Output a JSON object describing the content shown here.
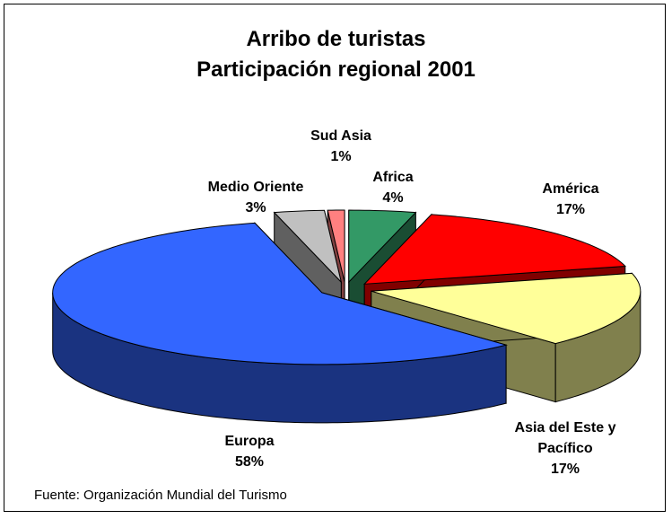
{
  "chart_data": {
    "type": "pie",
    "title": "Arribo de turistas",
    "subtitle": "Participación regional 2001",
    "categories": [
      "Africa",
      "América",
      "Asia del Este y Pacífico",
      "Europa",
      "Medio Oriente",
      "Sud Asia"
    ],
    "values": [
      4,
      17,
      17,
      58,
      3,
      1
    ],
    "value_labels": [
      "4%",
      "17%",
      "17%",
      "58%",
      "3%",
      "1%"
    ],
    "colors": [
      "#339966",
      "#ff0000",
      "#ffff99",
      "#3366ff",
      "#c0c0c0",
      "#ff8080"
    ],
    "note": "Fuente: Organización Mundial del Turismo"
  }
}
